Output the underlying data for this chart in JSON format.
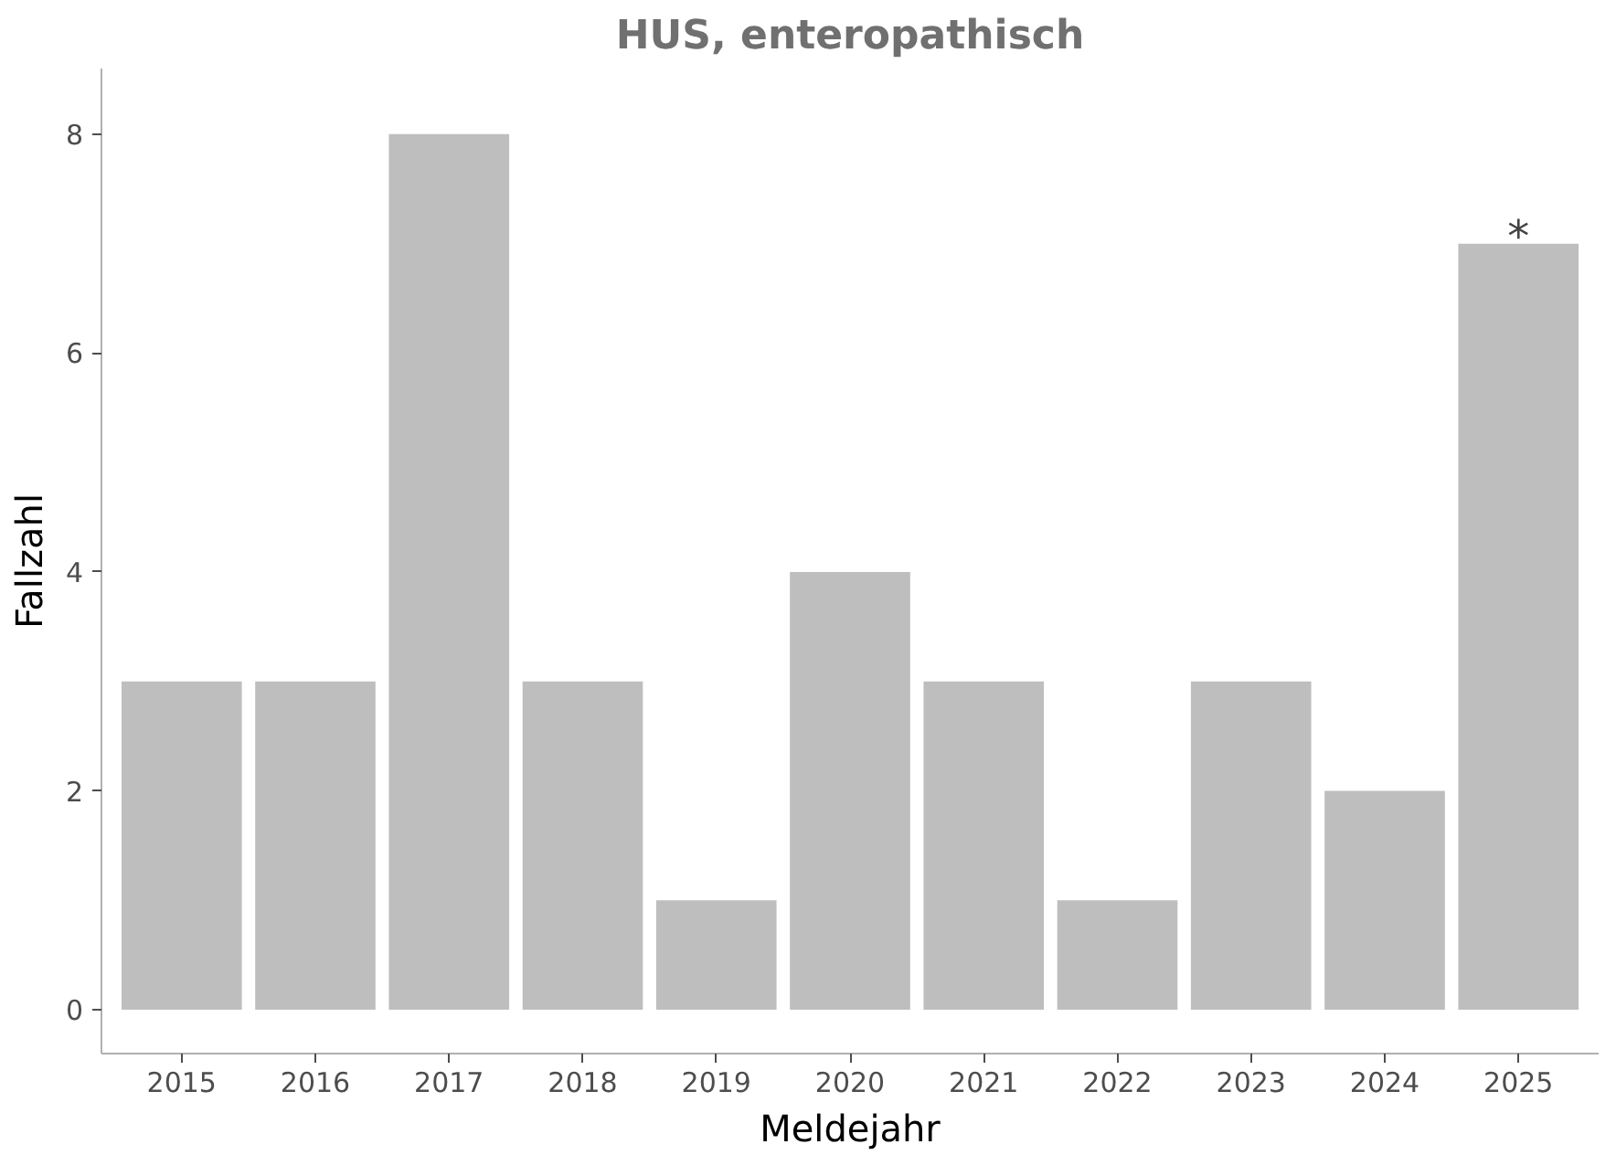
{
  "chart_data": {
    "type": "bar",
    "title": "HUS, enteropathisch",
    "xlabel": "Meldejahr",
    "ylabel": "Fallzahl",
    "categories": [
      "2015",
      "2016",
      "2017",
      "2018",
      "2019",
      "2020",
      "2021",
      "2022",
      "2023",
      "2024",
      "2025"
    ],
    "values": [
      3,
      3,
      8,
      3,
      1,
      4,
      3,
      1,
      3,
      2,
      7
    ],
    "color": "#bebebe",
    "ylim": [
      -0.4,
      8.6
    ],
    "yticks": [
      0,
      2,
      4,
      6,
      8
    ],
    "grid": false,
    "annotations": [
      {
        "text": "*",
        "x": "2025",
        "y": 7
      }
    ]
  }
}
